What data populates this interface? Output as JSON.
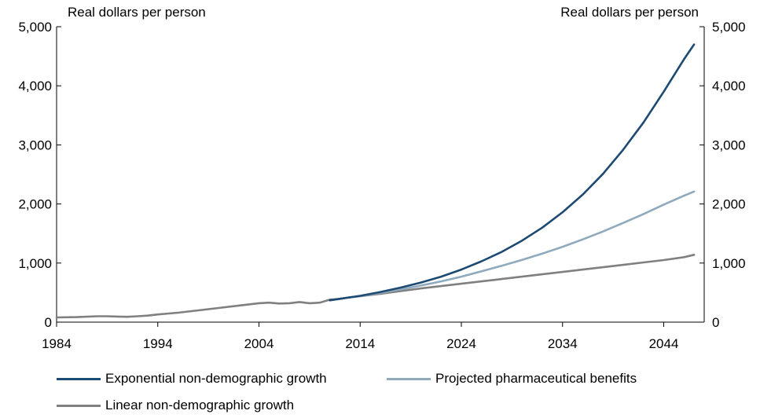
{
  "chart_data": {
    "type": "line",
    "title": "",
    "ylabel_left": "Real dollars per person",
    "ylabel_right": "Real dollars per person",
    "xlim": [
      1984,
      2048
    ],
    "ylim": [
      0,
      5000
    ],
    "x_ticks": [
      1984,
      1994,
      2004,
      2014,
      2024,
      2034,
      2044
    ],
    "x_tick_labels": [
      "1984",
      "1994",
      "2004",
      "2014",
      "2024",
      "2034",
      "2044"
    ],
    "y_ticks": [
      0,
      1000,
      2000,
      3000,
      4000,
      5000
    ],
    "y_tick_labels": [
      "0",
      "1,000",
      "2,000",
      "3,000",
      "4,000",
      "5,000"
    ],
    "grid": false,
    "legend_position": "bottom",
    "series": [
      {
        "name": "Exponential non-demographic growth",
        "color": "#1d4a72",
        "x": [
          2011,
          2012,
          2013,
          2014,
          2016,
          2018,
          2020,
          2022,
          2024,
          2026,
          2028,
          2030,
          2032,
          2034,
          2036,
          2038,
          2040,
          2042,
          2044,
          2046,
          2047
        ],
        "y": [
          370,
          395,
          420,
          445,
          510,
          585,
          670,
          770,
          890,
          1030,
          1190,
          1380,
          1600,
          1860,
          2160,
          2510,
          2920,
          3380,
          3900,
          4450,
          4700
        ]
      },
      {
        "name": "Projected pharmaceutical benefits",
        "color": "#8fa9bd",
        "x": [
          2011,
          2012,
          2013,
          2014,
          2016,
          2018,
          2020,
          2022,
          2024,
          2026,
          2028,
          2030,
          2032,
          2034,
          2036,
          2038,
          2040,
          2042,
          2044,
          2046,
          2047
        ],
        "y": [
          370,
          395,
          420,
          440,
          495,
          555,
          620,
          690,
          770,
          860,
          955,
          1055,
          1160,
          1275,
          1400,
          1535,
          1680,
          1830,
          1990,
          2140,
          2210
        ]
      },
      {
        "name": "Linear non-demographic growth",
        "color": "#808080",
        "x": [
          1984,
          1986,
          1988,
          1989,
          1990,
          1991,
          1992,
          1993,
          1994,
          1996,
          1998,
          2000,
          2002,
          2004,
          2005,
          2006,
          2007,
          2008,
          2009,
          2010,
          2011,
          2012,
          2013,
          2014,
          2016,
          2018,
          2020,
          2022,
          2024,
          2026,
          2028,
          2030,
          2032,
          2034,
          2036,
          2038,
          2040,
          2042,
          2044,
          2046,
          2047
        ],
        "y": [
          80,
          85,
          100,
          100,
          95,
          90,
          100,
          110,
          130,
          160,
          200,
          240,
          280,
          320,
          330,
          315,
          320,
          340,
          320,
          330,
          380,
          395,
          420,
          440,
          480,
          525,
          570,
          610,
          650,
          690,
          730,
          770,
          810,
          850,
          890,
          930,
          970,
          1010,
          1050,
          1100,
          1140
        ]
      }
    ]
  }
}
